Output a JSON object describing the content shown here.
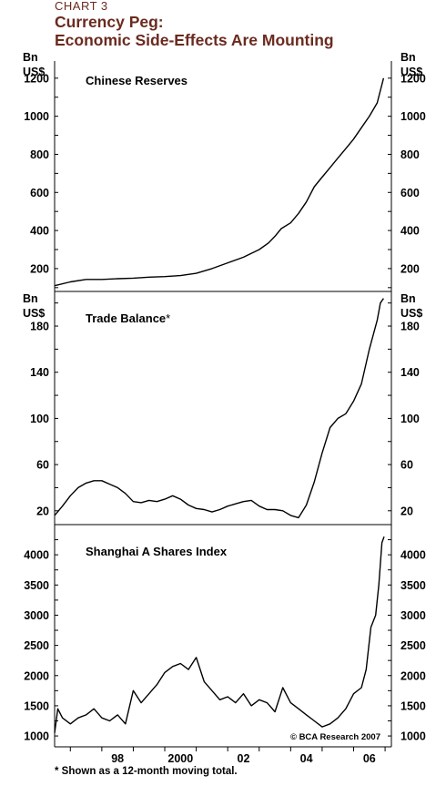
{
  "header": {
    "chart_number": "CHART 3",
    "title_line1": "Currency Peg:",
    "title_line2": "Economic Side-Effects Are Mounting"
  },
  "footnote": "* Shown as a 12-month moving total.",
  "copyright": "© BCA Research 2007",
  "colors": {
    "title": "#6b2a1f",
    "line": "#000000"
  },
  "chart_data": [
    {
      "type": "line",
      "label": "Chinese Reserves",
      "units": [
        "Bn",
        "US$"
      ],
      "ylim": [
        80,
        1290
      ],
      "yticks": [
        200,
        400,
        600,
        800,
        1000,
        1200
      ],
      "x": [
        1996.5,
        1997.0,
        1997.5,
        1998.0,
        1998.5,
        1999.0,
        1999.5,
        2000.0,
        2000.5,
        2001.0,
        2001.5,
        2002.0,
        2002.5,
        2003.0,
        2003.3,
        2003.5,
        2003.7,
        2004.0,
        2004.25,
        2004.5,
        2004.75,
        2005.0,
        2005.25,
        2005.5,
        2005.75,
        2006.0,
        2006.25,
        2006.5,
        2006.75,
        2006.95
      ],
      "values": [
        110,
        130,
        143,
        143,
        147,
        150,
        155,
        158,
        163,
        175,
        200,
        230,
        260,
        300,
        335,
        370,
        410,
        440,
        490,
        550,
        630,
        680,
        730,
        780,
        830,
        880,
        940,
        1000,
        1070,
        1200
      ]
    },
    {
      "type": "line",
      "label": "Trade Balance*",
      "units": [
        "Bn",
        "US$"
      ],
      "ylim": [
        8,
        210
      ],
      "yticks": [
        20,
        60,
        100,
        140,
        180
      ],
      "x": [
        1996.5,
        1996.75,
        1997.0,
        1997.25,
        1997.5,
        1997.75,
        1998.0,
        1998.25,
        1998.5,
        1998.75,
        1999.0,
        1999.25,
        1999.5,
        1999.75,
        2000.0,
        2000.25,
        2000.5,
        2000.75,
        2001.0,
        2001.25,
        2001.5,
        2001.75,
        2002.0,
        2002.25,
        2002.5,
        2002.75,
        2003.0,
        2003.25,
        2003.5,
        2003.75,
        2004.0,
        2004.25,
        2004.5,
        2004.75,
        2005.0,
        2005.25,
        2005.5,
        2005.75,
        2006.0,
        2006.25,
        2006.5,
        2006.75,
        2006.85,
        2006.95
      ],
      "values": [
        16,
        24,
        33,
        40,
        44,
        46,
        46,
        43,
        40,
        35,
        28,
        27,
        29,
        28,
        30,
        33,
        30,
        25,
        22,
        21,
        19,
        21,
        24,
        26,
        28,
        29,
        24,
        21,
        21,
        20,
        16,
        14,
        25,
        45,
        70,
        92,
        100,
        104,
        115,
        130,
        160,
        185,
        200,
        204
      ]
    },
    {
      "type": "line",
      "label": "Shanghai A Shares Index",
      "ylim": [
        820,
        4500
      ],
      "yticks": [
        1000,
        1500,
        2000,
        2500,
        3000,
        3500,
        4000
      ],
      "x": [
        1996.5,
        1996.6,
        1996.75,
        1997.0,
        1997.25,
        1997.5,
        1997.75,
        1998.0,
        1998.25,
        1998.5,
        1998.75,
        1999.0,
        1999.25,
        1999.5,
        1999.75,
        2000.0,
        2000.25,
        2000.5,
        2000.75,
        2001.0,
        2001.25,
        2001.5,
        2001.75,
        2002.0,
        2002.25,
        2002.5,
        2002.75,
        2003.0,
        2003.25,
        2003.5,
        2003.75,
        2004.0,
        2004.25,
        2004.5,
        2004.75,
        2005.0,
        2005.25,
        2005.5,
        2005.75,
        2006.0,
        2006.25,
        2006.4,
        2006.55,
        2006.7,
        2006.8,
        2006.9,
        2006.97
      ],
      "values": [
        1050,
        1450,
        1300,
        1200,
        1300,
        1350,
        1450,
        1300,
        1250,
        1350,
        1200,
        1750,
        1550,
        1700,
        1850,
        2050,
        2150,
        2200,
        2100,
        2300,
        1900,
        1750,
        1600,
        1650,
        1550,
        1700,
        1500,
        1600,
        1550,
        1400,
        1800,
        1550,
        1450,
        1350,
        1250,
        1150,
        1200,
        1300,
        1450,
        1700,
        1800,
        2100,
        2800,
        3000,
        3500,
        4200,
        4300
      ]
    }
  ],
  "x_axis": {
    "xlim": [
      1996.5,
      2007.2
    ],
    "ticks": [
      1998,
      2000,
      2002,
      2004,
      2006
    ],
    "tick_labels": [
      "98",
      "2000",
      "02",
      "04",
      "06"
    ]
  }
}
